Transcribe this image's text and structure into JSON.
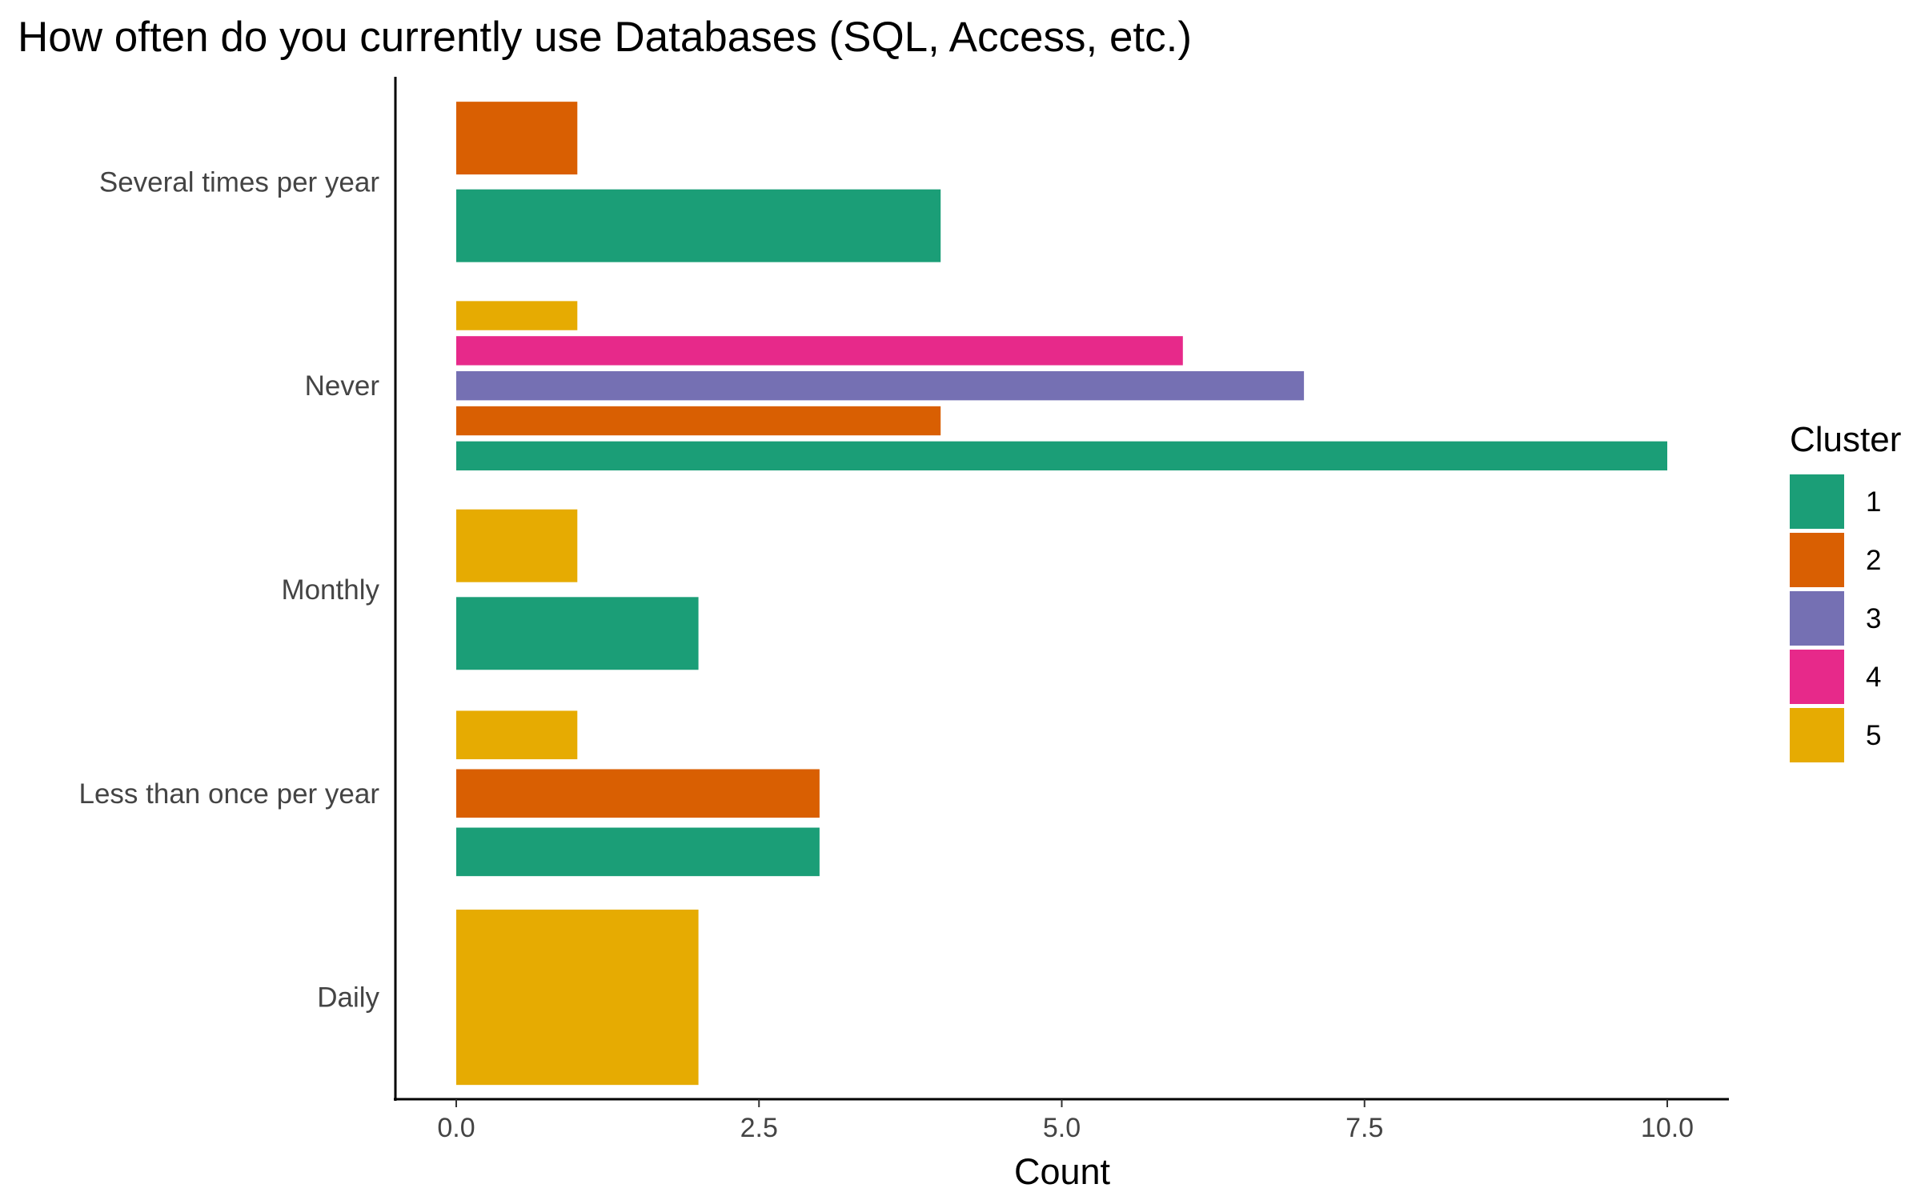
{
  "chart_data": {
    "type": "bar",
    "orientation": "horizontal",
    "title": "How often do you currently use Databases (SQL, Access, etc.)",
    "xlabel": "Count",
    "ylabel": "",
    "xlim": [
      0,
      10
    ],
    "x_ticks": [
      "0.0",
      "2.5",
      "5.0",
      "7.5",
      "10.0"
    ],
    "grid": false,
    "legend": {
      "title": "Cluster",
      "placement": "right",
      "entries": [
        {
          "key": "1",
          "label": "1",
          "color": "#1b9e77"
        },
        {
          "key": "2",
          "label": "2",
          "color": "#d95f02"
        },
        {
          "key": "3",
          "label": "3",
          "color": "#7570b3"
        },
        {
          "key": "4",
          "label": "4",
          "color": "#e7298a"
        },
        {
          "key": "5",
          "label": "5",
          "color": "#e6ab02"
        }
      ]
    },
    "categories": [
      {
        "label": "Several times per year",
        "bars": [
          {
            "cluster": "1",
            "value": 4
          },
          {
            "cluster": "2",
            "value": 1
          }
        ]
      },
      {
        "label": "Never",
        "bars": [
          {
            "cluster": "1",
            "value": 10
          },
          {
            "cluster": "2",
            "value": 4
          },
          {
            "cluster": "3",
            "value": 7
          },
          {
            "cluster": "4",
            "value": 6
          },
          {
            "cluster": "5",
            "value": 1
          }
        ]
      },
      {
        "label": "Monthly",
        "bars": [
          {
            "cluster": "1",
            "value": 2
          },
          {
            "cluster": "5",
            "value": 1
          }
        ]
      },
      {
        "label": "Less than once per year",
        "bars": [
          {
            "cluster": "1",
            "value": 3
          },
          {
            "cluster": "2",
            "value": 3
          },
          {
            "cluster": "5",
            "value": 1
          }
        ]
      },
      {
        "label": "Daily",
        "bars": [
          {
            "cluster": "5",
            "value": 2
          }
        ]
      }
    ]
  }
}
